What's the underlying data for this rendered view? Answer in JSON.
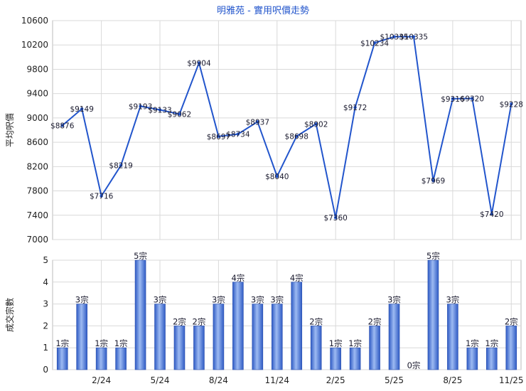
{
  "chart_data": [
    {
      "type": "line",
      "title": "明雅苑 - 實用呎價走勢",
      "ylabel": "平均呎價",
      "ylim": [
        7000,
        10600
      ],
      "yticks": [
        7000,
        7400,
        7800,
        8200,
        8600,
        9000,
        9400,
        9800,
        10200,
        10600
      ],
      "grid": true,
      "series": [
        {
          "values": [
            8876,
            9149,
            7716,
            8219,
            9193,
            9133,
            9062,
            9904,
            8697,
            8734,
            8937,
            8040,
            8698,
            8902,
            7360,
            9172,
            10234,
            10335,
            10335,
            7969,
            9316,
            9320,
            7420,
            9228
          ],
          "labels": [
            "$8876",
            "$9149",
            "$7716",
            "$8219",
            "$9193",
            "$9133",
            "$9062",
            "$9904",
            "$8697",
            "$8734",
            "$8937",
            "$8040",
            "$8698",
            "$8902",
            "$7360",
            "$9172",
            "$10234",
            "$10335",
            "$10335",
            "$7969",
            "$9316",
            "$9320",
            "$7420",
            "$9228"
          ]
        }
      ]
    },
    {
      "type": "bar",
      "ylabel": "成交宗數",
      "ylim": [
        0,
        5
      ],
      "yticks": [
        0,
        1,
        2,
        3,
        4,
        5
      ],
      "categories": [
        "",
        "",
        "2/24",
        "",
        "",
        "5/24",
        "",
        "",
        "8/24",
        "",
        "",
        "11/24",
        "",
        "",
        "2/25",
        "",
        "",
        "5/25",
        "",
        "",
        "8/25",
        "",
        "",
        "11/25"
      ],
      "values": [
        1,
        3,
        1,
        1,
        5,
        3,
        2,
        2,
        3,
        4,
        3,
        3,
        4,
        2,
        1,
        1,
        2,
        3,
        0,
        5,
        3,
        1,
        1,
        2
      ],
      "labels": [
        "1宗",
        "3宗",
        "1宗",
        "1宗",
        "5宗",
        "3宗",
        "2宗",
        "2宗",
        "3宗",
        "4宗",
        "3宗",
        "3宗",
        "4宗",
        "2宗",
        "1宗",
        "1宗",
        "2宗",
        "3宗",
        "0宗",
        "5宗",
        "3宗",
        "1宗",
        "1宗",
        "2宗"
      ],
      "grid": true
    }
  ],
  "colors": {
    "line": "#2255cc",
    "bar_light": "#8fb0ee",
    "bar_dark": "#2f5bc4",
    "grid": "#d9d9d9",
    "title": "#2255cc",
    "text": "#222222"
  }
}
